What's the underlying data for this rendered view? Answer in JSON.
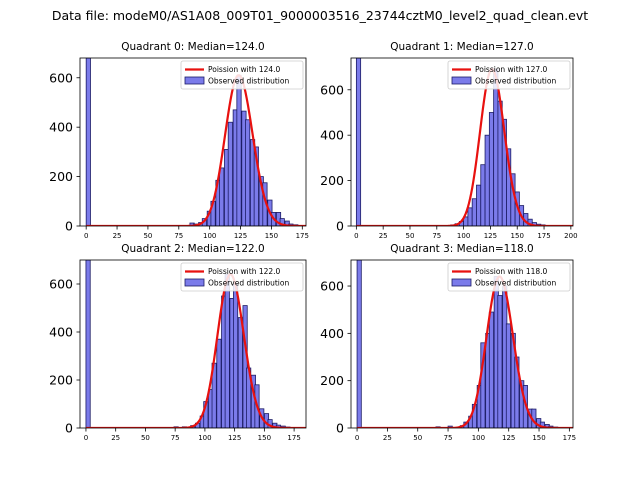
{
  "figure": {
    "suptitle": "Data file: modeM0/AS1A08_009T01_9000003516_23744cztM0_level2_quad_clean.evt"
  },
  "legend": {
    "poisson_prefix": "Poission with",
    "observed_label": "Observed distribution"
  },
  "colors": {
    "bar_fill": "#7b7bea",
    "bar_edge": "#1c1c66",
    "poisson_line": "#e8110f",
    "axes": "#000000"
  },
  "chart_data": [
    {
      "type": "bar",
      "title": "Quadrant 0: Median=124.0",
      "median": 124.0,
      "poisson_label": "Poission with 124.0",
      "xlim": [
        -5,
        178
      ],
      "ylim": [
        0,
        680
      ],
      "xticks": [
        0,
        25,
        50,
        75,
        100,
        125,
        150,
        175
      ],
      "yticks": [
        0,
        200,
        400,
        600
      ],
      "bin_width": 3.5,
      "zero_bin_height": 680,
      "bins": [
        [
          84,
          12
        ],
        [
          87,
          8
        ],
        [
          91,
          14
        ],
        [
          94,
          30
        ],
        [
          98,
          60
        ],
        [
          101,
          100
        ],
        [
          105,
          185
        ],
        [
          108,
          235
        ],
        [
          112,
          310
        ],
        [
          115,
          420
        ],
        [
          119,
          470
        ],
        [
          122,
          610
        ],
        [
          126,
          465
        ],
        [
          129,
          430
        ],
        [
          133,
          350
        ],
        [
          136,
          320
        ],
        [
          140,
          200
        ],
        [
          143,
          175
        ],
        [
          147,
          105
        ],
        [
          150,
          55
        ],
        [
          154,
          55
        ],
        [
          157,
          30
        ],
        [
          161,
          20
        ],
        [
          164,
          8
        ],
        [
          168,
          5
        ]
      ]
    },
    {
      "type": "bar",
      "title": "Quadrant 1: Median=127.0",
      "median": 127.0,
      "poisson_label": "Poission with 127.0",
      "xlim": [
        -5,
        202
      ],
      "ylim": [
        0,
        740
      ],
      "xticks": [
        0,
        25,
        50,
        75,
        100,
        125,
        150,
        175,
        200
      ],
      "yticks": [
        0,
        200,
        400,
        600
      ],
      "bin_width": 4,
      "zero_bin_height": 740,
      "bins": [
        [
          88,
          5
        ],
        [
          92,
          10
        ],
        [
          96,
          20
        ],
        [
          100,
          40
        ],
        [
          104,
          80
        ],
        [
          108,
          120
        ],
        [
          112,
          180
        ],
        [
          116,
          270
        ],
        [
          120,
          400
        ],
        [
          124,
          500
        ],
        [
          128,
          690
        ],
        [
          132,
          550
        ],
        [
          136,
          470
        ],
        [
          140,
          340
        ],
        [
          144,
          230
        ],
        [
          148,
          150
        ],
        [
          152,
          90
        ],
        [
          156,
          55
        ],
        [
          160,
          30
        ],
        [
          164,
          15
        ],
        [
          168,
          8
        ],
        [
          172,
          5
        ]
      ]
    },
    {
      "type": "bar",
      "title": "Quadrant 2: Median=122.0",
      "median": 122.0,
      "poisson_label": "Poission with 122.0",
      "xlim": [
        -5,
        185
      ],
      "ylim": [
        0,
        700
      ],
      "xticks": [
        0,
        25,
        50,
        75,
        100,
        125,
        150,
        175
      ],
      "yticks": [
        0,
        200,
        400,
        600
      ],
      "bin_width": 3.6,
      "zero_bin_height": 700,
      "bins": [
        [
          74,
          5
        ],
        [
          81,
          5
        ],
        [
          88,
          10
        ],
        [
          92,
          20
        ],
        [
          96,
          50
        ],
        [
          99,
          110
        ],
        [
          103,
          160
        ],
        [
          106,
          270
        ],
        [
          110,
          370
        ],
        [
          114,
          550
        ],
        [
          117,
          640
        ],
        [
          121,
          540
        ],
        [
          124,
          600
        ],
        [
          128,
          460
        ],
        [
          132,
          510
        ],
        [
          135,
          250
        ],
        [
          139,
          220
        ],
        [
          142,
          180
        ],
        [
          146,
          80
        ],
        [
          150,
          60
        ],
        [
          153,
          35
        ],
        [
          157,
          20
        ],
        [
          160,
          12
        ],
        [
          164,
          8
        ],
        [
          168,
          4
        ]
      ]
    },
    {
      "type": "bar",
      "title": "Quadrant 3: Median=118.0",
      "median": 118.0,
      "poisson_label": "Poission with 118.0",
      "xlim": [
        -5,
        178
      ],
      "ylim": [
        0,
        710
      ],
      "xticks": [
        0,
        25,
        50,
        75,
        100,
        125,
        150,
        175
      ],
      "yticks": [
        0,
        200,
        400,
        600
      ],
      "bin_width": 3.5,
      "zero_bin_height": 710,
      "bins": [
        [
          65,
          5
        ],
        [
          75,
          8
        ],
        [
          85,
          10
        ],
        [
          88,
          25
        ],
        [
          92,
          50
        ],
        [
          95,
          100
        ],
        [
          99,
          180
        ],
        [
          102,
          360
        ],
        [
          106,
          400
        ],
        [
          109,
          490
        ],
        [
          113,
          640
        ],
        [
          116,
          560
        ],
        [
          120,
          600
        ],
        [
          123,
          440
        ],
        [
          127,
          400
        ],
        [
          130,
          300
        ],
        [
          134,
          200
        ],
        [
          137,
          180
        ],
        [
          141,
          80
        ],
        [
          144,
          80
        ],
        [
          148,
          40
        ],
        [
          151,
          25
        ],
        [
          155,
          15
        ],
        [
          158,
          8
        ],
        [
          162,
          4
        ]
      ]
    }
  ]
}
